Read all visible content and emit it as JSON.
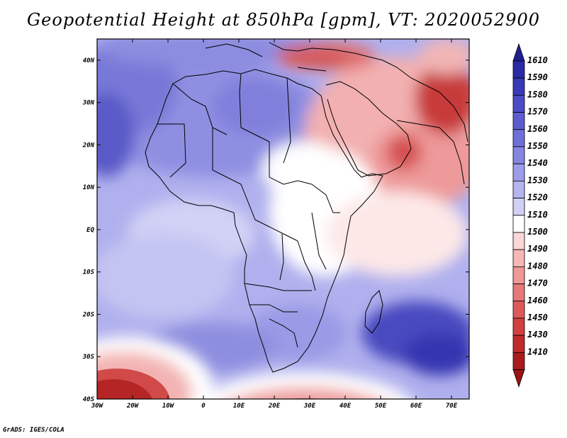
{
  "title": "Geopotential Height at 850hPa [gpm], VT: 2020052900",
  "credit": "GrADS: IGES/COLA",
  "map": {
    "variable": "Geopotential Height",
    "level": "850hPa",
    "units": "gpm",
    "valid_time": "2020052900",
    "region": "Africa",
    "lon_range": [
      -30,
      75
    ],
    "lat_range": [
      -40,
      45
    ],
    "lat_labels": [
      "40N",
      "30N",
      "20N",
      "10N",
      "EQ",
      "10S",
      "20S",
      "30S",
      "40S"
    ],
    "lat_values": [
      40,
      30,
      20,
      10,
      0,
      -10,
      -20,
      -30,
      -40
    ],
    "lon_labels": [
      "30W",
      "20W",
      "10W",
      "0",
      "10E",
      "20E",
      "30E",
      "40E",
      "50E",
      "60E",
      "70E"
    ],
    "lon_values": [
      -30,
      -20,
      -10,
      0,
      10,
      20,
      30,
      40,
      50,
      60,
      70
    ]
  },
  "colorbar": {
    "labels": [
      "1610",
      "1590",
      "1580",
      "1570",
      "1560",
      "1550",
      "1540",
      "1530",
      "1520",
      "1510",
      "1500",
      "1490",
      "1480",
      "1470",
      "1460",
      "1450",
      "1430",
      "1410"
    ],
    "colors": [
      "#2a2aa6",
      "#3838b8",
      "#4b4bc6",
      "#5c5cd0",
      "#6f6fda",
      "#8585e2",
      "#9c9ce9",
      "#b5b5f0",
      "#d0d0f7",
      "#ffffff",
      "#fbd6d6",
      "#f6b7b7",
      "#ef9898",
      "#e77878",
      "#dd5a5a",
      "#d13f3f",
      "#c12a2a",
      "#a81c1c"
    ],
    "over_color": "#1f1f8f",
    "under_color": "#9a1414"
  }
}
